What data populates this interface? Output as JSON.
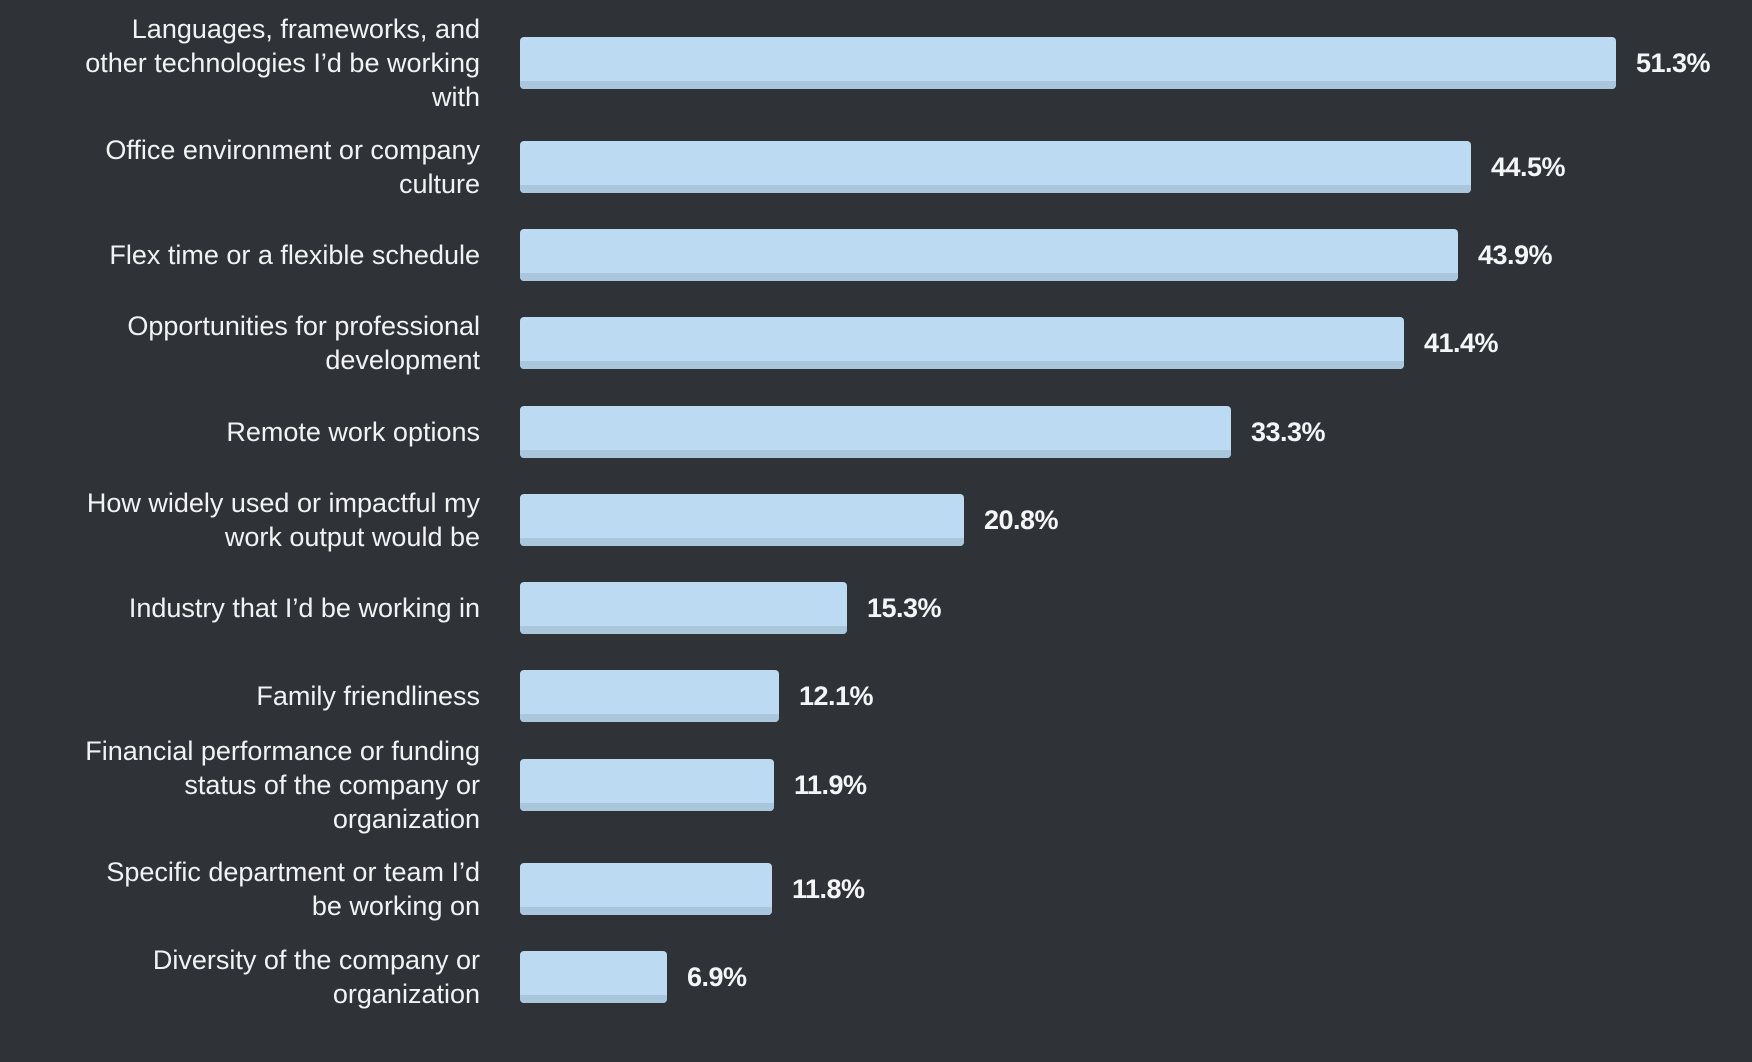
{
  "chart_data": {
    "type": "bar",
    "orientation": "horizontal",
    "title": "",
    "xlabel": "",
    "ylabel": "",
    "value_suffix": "%",
    "xlim": [
      0,
      51.3
    ],
    "grid": false,
    "legend": "none",
    "colors": {
      "background": "#2f3337",
      "bar": "#bcdbf2",
      "bar_shadow": "#a9c6dc",
      "label_text": "#f1f2f3",
      "value_text": "#f4f5f6"
    },
    "categories": [
      [
        "Languages, frameworks, and",
        "other technologies I’d be working",
        "with"
      ],
      [
        "Office environment or company",
        "culture"
      ],
      [
        "Flex time or a flexible schedule"
      ],
      [
        "Opportunities for professional",
        "development"
      ],
      [
        "Remote work options"
      ],
      [
        "How widely used or impactful my",
        "work output would be"
      ],
      [
        "Industry that I’d be working in"
      ],
      [
        "Family friendliness"
      ],
      [
        "Financial performance or funding",
        "status of the company or",
        "organization"
      ],
      [
        "Specific department or team I’d",
        "be working on"
      ],
      [
        "Diversity of the company or",
        "organization"
      ]
    ],
    "values": [
      51.3,
      44.5,
      43.9,
      41.4,
      33.3,
      20.8,
      15.3,
      12.1,
      11.9,
      11.8,
      6.9
    ],
    "value_labels": [
      "51.3%",
      "44.5%",
      "43.9%",
      "41.4%",
      "33.3%",
      "20.8%",
      "15.3%",
      "12.1%",
      "11.9%",
      "11.8%",
      "6.9%"
    ]
  }
}
